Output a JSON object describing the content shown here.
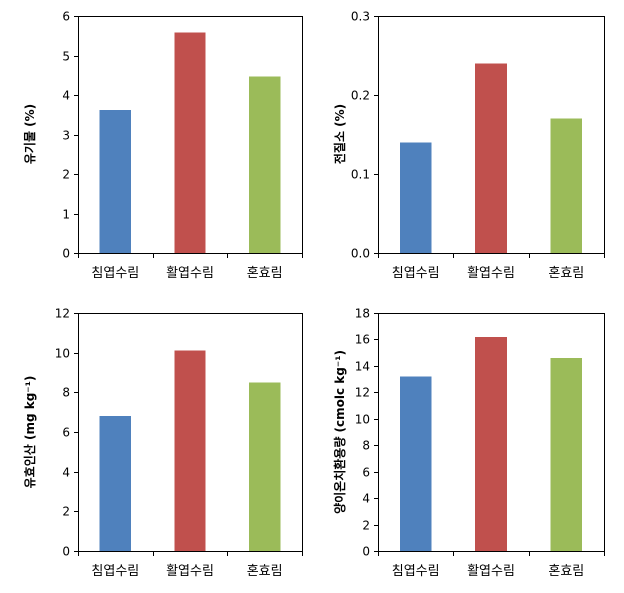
{
  "colors": {
    "blue": "#4f81bd",
    "red": "#c0504d",
    "green": "#9bbb59"
  },
  "chart_data": [
    {
      "type": "bar",
      "categories": [
        "침엽수림",
        "활엽수림",
        "혼효림"
      ],
      "values": [
        3.62,
        5.58,
        4.47
      ],
      "bar_colors": [
        "#4f81bd",
        "#c0504d",
        "#9bbb59"
      ],
      "title": "",
      "xlabel": "",
      "ylabel": "유기물 (%)",
      "ylim": [
        0,
        6
      ],
      "yticks": [
        "0",
        "1",
        "2",
        "3",
        "4",
        "5",
        "6"
      ],
      "grid": false,
      "legend": "none"
    },
    {
      "type": "bar",
      "categories": [
        "침엽수림",
        "활엽수림",
        "혼효림"
      ],
      "values": [
        0.14,
        0.24,
        0.17
      ],
      "bar_colors": [
        "#4f81bd",
        "#c0504d",
        "#9bbb59"
      ],
      "title": "",
      "xlabel": "",
      "ylabel": "전질소 (%)",
      "ylim": [
        0,
        0.3
      ],
      "yticks": [
        "0.0",
        "0.1",
        "0.2",
        "0.3"
      ],
      "grid": false,
      "legend": "none"
    },
    {
      "type": "bar",
      "categories": [
        "침엽수림",
        "활엽수림",
        "혼효림"
      ],
      "values": [
        6.8,
        10.1,
        8.5
      ],
      "bar_colors": [
        "#4f81bd",
        "#c0504d",
        "#9bbb59"
      ],
      "title": "",
      "xlabel": "",
      "ylabel": "유효인산 (mg kg⁻¹)",
      "ylim": [
        0,
        12
      ],
      "yticks": [
        "0",
        "2",
        "4",
        "6",
        "8",
        "10",
        "12"
      ],
      "grid": false,
      "legend": "none"
    },
    {
      "type": "bar",
      "categories": [
        "침엽수림",
        "활엽수림",
        "혼효림"
      ],
      "values": [
        13.2,
        16.2,
        14.6
      ],
      "bar_colors": [
        "#4f81bd",
        "#c0504d",
        "#9bbb59"
      ],
      "title": "",
      "xlabel": "",
      "ylabel": "양이온치환용량 (cmolc kg⁻¹)",
      "ylim": [
        0,
        18
      ],
      "yticks": [
        "0",
        "2",
        "4",
        "6",
        "8",
        "10",
        "12",
        "14",
        "16",
        "18"
      ],
      "grid": false,
      "legend": "none"
    }
  ]
}
